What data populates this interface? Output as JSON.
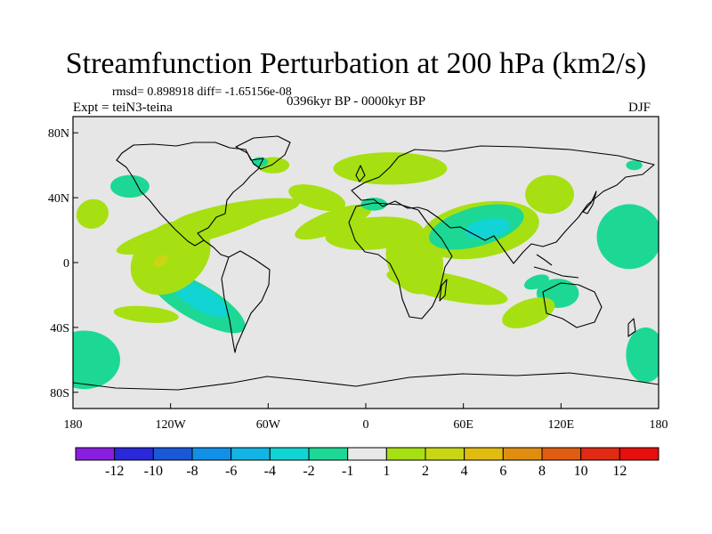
{
  "chart_data": {
    "type": "heatmap",
    "title": "Streamfunction Perturbation at 200 hPa (km2/s)",
    "stats_text": "rmsd= 0.898918 diff= -1.65156e-08",
    "experiment": "Expt = teiN3-teina",
    "period": "0396kyr BP - 0000kyr BP",
    "season": "DJF",
    "x_axis": {
      "range": [
        -180,
        180
      ],
      "ticks": [
        {
          "value": -180,
          "label": "180"
        },
        {
          "value": -120,
          "label": "120W"
        },
        {
          "value": -60,
          "label": "60W"
        },
        {
          "value": 0,
          "label": "0"
        },
        {
          "value": 60,
          "label": "60E"
        },
        {
          "value": 120,
          "label": "120E"
        },
        {
          "value": 180,
          "label": "180"
        }
      ]
    },
    "y_axis": {
      "range": [
        -90,
        90
      ],
      "ticks": [
        {
          "value": 80,
          "label": "80N"
        },
        {
          "value": 40,
          "label": "40N"
        },
        {
          "value": 0,
          "label": "0"
        },
        {
          "value": -40,
          "label": "40S"
        },
        {
          "value": -80,
          "label": "80S"
        }
      ]
    },
    "colorbar": {
      "levels": [
        "-12",
        "-10",
        "-8",
        "-6",
        "-4",
        "-2",
        "-1",
        "1",
        "2",
        "4",
        "6",
        "8",
        "10",
        "12"
      ],
      "colors": [
        "#8a1ee0",
        "#2a28d8",
        "#1a58d8",
        "#1290e8",
        "#12b4e4",
        "#12d4d4",
        "#1cd894",
        "#e8e8e8",
        "#a6e012",
        "#c8d614",
        "#e0bc10",
        "#e08e10",
        "#e05c10",
        "#e02a14",
        "#e80e0e"
      ]
    },
    "perturbation_regions": [
      {
        "lon": -104,
        "lat": -24,
        "rx": 34,
        "ry": 11,
        "rot": 30,
        "value": -1.5
      },
      {
        "lon": -102,
        "lat": -22,
        "rx": 20,
        "ry": 7,
        "rot": 30,
        "value": -3
      },
      {
        "lon": -120,
        "lat": 3,
        "rx": 27,
        "ry": 20,
        "rot": -38,
        "value": 1.5
      },
      {
        "lon": -126,
        "lat": 1,
        "rx": 5,
        "ry": 3,
        "rot": -30,
        "value": 3
      },
      {
        "lon": -105,
        "lat": 20,
        "rx": 50,
        "ry": 8,
        "rot": -15,
        "value": 1.5
      },
      {
        "lon": -80,
        "lat": 30,
        "rx": 40,
        "ry": 7,
        "rot": -10,
        "value": 1.5
      },
      {
        "lon": -168,
        "lat": 30,
        "rx": 10,
        "ry": 9,
        "rot": -20,
        "value": 1.5
      },
      {
        "lon": -145,
        "lat": 47,
        "rx": 12,
        "ry": 7,
        "rot": 0,
        "value": -1.5
      },
      {
        "lon": -173,
        "lat": -60,
        "rx": 22,
        "ry": 18,
        "rot": 0,
        "value": -1.5
      },
      {
        "lon": -135,
        "lat": -32,
        "rx": 20,
        "ry": 5,
        "rot": 5,
        "value": 1.5
      },
      {
        "lon": -57,
        "lat": 60,
        "rx": 10,
        "ry": 5,
        "rot": 0,
        "value": 1.5
      },
      {
        "lon": -65,
        "lat": 62,
        "rx": 5,
        "ry": 3,
        "rot": 0,
        "value": -1.5
      },
      {
        "lon": -30,
        "lat": 40,
        "rx": 18,
        "ry": 7,
        "rot": 15,
        "value": 1.5
      },
      {
        "lon": -20,
        "lat": 25,
        "rx": 25,
        "ry": 7,
        "rot": -20,
        "value": 1.5
      },
      {
        "lon": 5,
        "lat": 18,
        "rx": 30,
        "ry": 10,
        "rot": -5,
        "value": 1.5
      },
      {
        "lon": 30,
        "lat": 2,
        "rx": 17,
        "ry": 22,
        "rot": -20,
        "value": 1.5
      },
      {
        "lon": 50,
        "lat": -15,
        "rx": 38,
        "ry": 8,
        "rot": 12,
        "value": 1.5
      },
      {
        "lon": 15,
        "lat": 58,
        "rx": 35,
        "ry": 10,
        "rot": 0,
        "value": 1.5
      },
      {
        "lon": 5,
        "lat": 36,
        "rx": 8,
        "ry": 4,
        "rot": 0,
        "value": -1.5
      },
      {
        "lon": 70,
        "lat": 20,
        "rx": 37,
        "ry": 17,
        "rot": -10,
        "value": 1.5
      },
      {
        "lon": 68,
        "lat": 22,
        "rx": 30,
        "ry": 12,
        "rot": -15,
        "value": -1.5
      },
      {
        "lon": 75,
        "lat": 21,
        "rx": 14,
        "ry": 6,
        "rot": -10,
        "value": -3
      },
      {
        "lon": 113,
        "lat": 42,
        "rx": 15,
        "ry": 12,
        "rot": 0,
        "value": 1.5
      },
      {
        "lon": 105,
        "lat": -12,
        "rx": 8,
        "ry": 4,
        "rot": -20,
        "value": -1.5
      },
      {
        "lon": 118,
        "lat": -19,
        "rx": 13,
        "ry": 9,
        "rot": 0,
        "value": -1.5
      },
      {
        "lon": 100,
        "lat": -31,
        "rx": 17,
        "ry": 8,
        "rot": -20,
        "value": 1.5
      },
      {
        "lon": 162,
        "lat": 16,
        "rx": 20,
        "ry": 20,
        "rot": 0,
        "value": -1.5
      },
      {
        "lon": 172,
        "lat": -57,
        "rx": 12,
        "ry": 17,
        "rot": 0,
        "value": -1.5
      },
      {
        "lon": 165,
        "lat": 60,
        "rx": 5,
        "ry": 3,
        "rot": 0,
        "value": -1.5
      }
    ]
  }
}
